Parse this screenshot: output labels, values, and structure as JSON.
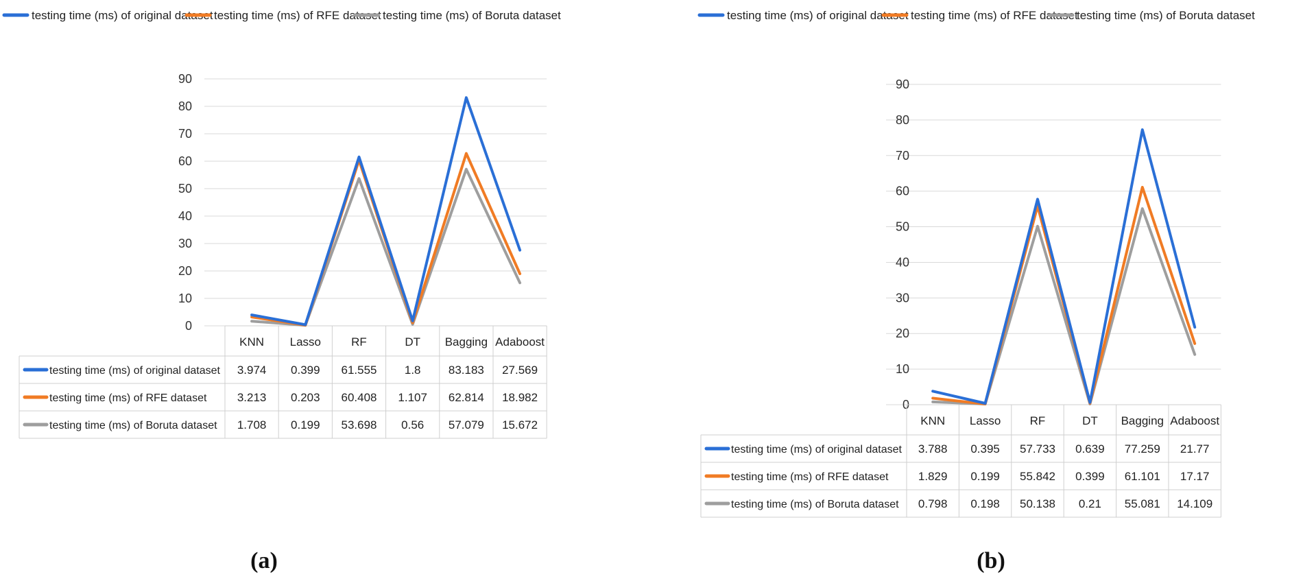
{
  "chart_data": [
    {
      "type": "line",
      "panel_label": "(a)",
      "categories": [
        "KNN",
        "Lasso",
        "RF",
        "DT",
        "Bagging",
        "Adaboost"
      ],
      "ylim": [
        0,
        90
      ],
      "yticks": [
        0,
        10,
        20,
        30,
        40,
        50,
        60,
        70,
        80,
        90
      ],
      "grid": true,
      "legend_position": "top",
      "series": [
        {
          "name": "testing time (ms) of original dataset",
          "color": "#2a6fd6",
          "values": [
            3.974,
            0.399,
            61.555,
            1.8,
            83.183,
            27.569
          ],
          "labels": [
            "3.974",
            "0.399",
            "61.555",
            "1.8",
            "83.183",
            "27.569"
          ]
        },
        {
          "name": "testing time (ms) of RFE dataset",
          "color": "#f07b24",
          "values": [
            3.213,
            0.203,
            60.408,
            1.107,
            62.814,
            18.982
          ],
          "labels": [
            "3.213",
            "0.203",
            "60.408",
            "1.107",
            "62.814",
            "18.982"
          ]
        },
        {
          "name": "testing time (ms) of Boruta dataset",
          "color": "#9e9e9e",
          "values": [
            1.708,
            0.199,
            53.698,
            0.56,
            57.079,
            15.672
          ],
          "labels": [
            "1.708",
            "0.199",
            "53.698",
            "0.56",
            "57.079",
            "15.672"
          ]
        }
      ]
    },
    {
      "type": "line",
      "panel_label": "(b)",
      "categories": [
        "KNN",
        "Lasso",
        "RF",
        "DT",
        "Bagging",
        "Adaboost"
      ],
      "ylim": [
        0,
        90
      ],
      "yticks": [
        0,
        10,
        20,
        30,
        40,
        50,
        60,
        70,
        80,
        90
      ],
      "grid": true,
      "legend_position": "top",
      "series": [
        {
          "name": "testing time (ms) of original dataset",
          "color": "#2a6fd6",
          "values": [
            3.788,
            0.395,
            57.733,
            0.639,
            77.259,
            21.77
          ],
          "labels": [
            "3.788",
            "0.395",
            "57.733",
            "0.639",
            "77.259",
            "21.77"
          ]
        },
        {
          "name": "testing time (ms) of RFE dataset",
          "color": "#f07b24",
          "values": [
            1.829,
            0.199,
            55.842,
            0.399,
            61.101,
            17.17
          ],
          "labels": [
            "1.829",
            "0.199",
            "55.842",
            "0.399",
            "61.101",
            "17.17"
          ]
        },
        {
          "name": "testing time (ms) of Boruta dataset",
          "color": "#9e9e9e",
          "values": [
            0.798,
            0.198,
            50.138,
            0.21,
            55.081,
            14.109
          ],
          "labels": [
            "0.798",
            "0.198",
            "50.138",
            "0.21",
            "55.081",
            "14.109"
          ]
        }
      ]
    }
  ]
}
